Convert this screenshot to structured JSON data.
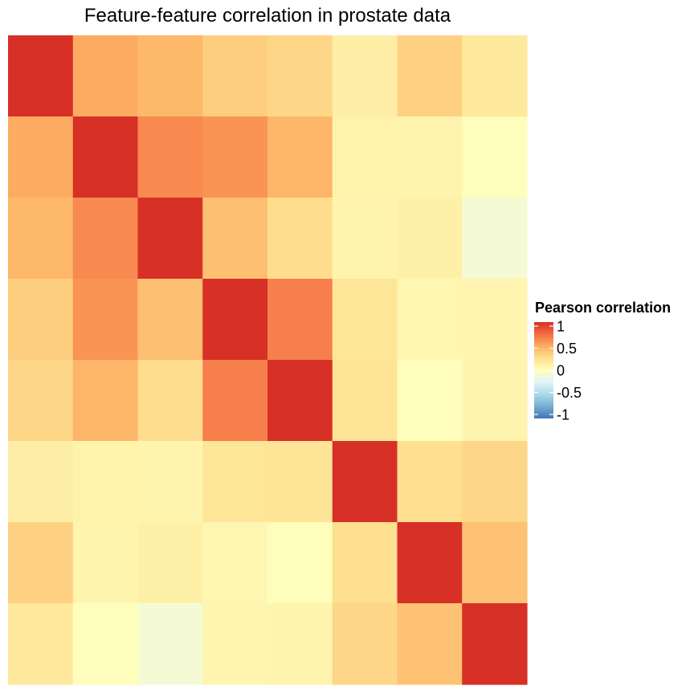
{
  "chart_data": {
    "type": "heatmap",
    "title": "Feature-feature correlation in prostate data",
    "xlabel": "",
    "ylabel": "",
    "legend": {
      "title": "Pearson correlation",
      "position": "right",
      "ticks": [
        1,
        0.5,
        0,
        -0.5,
        -1
      ],
      "tick_labels": [
        "1",
        "0.5",
        "0",
        "-0.5",
        "-1"
      ],
      "range": [
        -1,
        1
      ]
    },
    "color_scale": {
      "low": "#4575b4",
      "mid": "#ffffbf",
      "high": "#d73027",
      "palette": [
        "#4575b4",
        "#74add1",
        "#abd9e9",
        "#e0f3f8",
        "#ffffbf",
        "#fee090",
        "#fdae61",
        "#f46d43",
        "#d73027"
      ]
    },
    "matrix": [
      [
        1.0,
        0.51,
        0.45,
        0.34,
        0.3,
        0.14,
        0.33,
        0.18
      ],
      [
        0.51,
        1.0,
        0.64,
        0.6,
        0.46,
        0.1,
        0.09,
        0.02
      ],
      [
        0.45,
        0.64,
        1.0,
        0.41,
        0.26,
        0.09,
        0.12,
        -0.09
      ],
      [
        0.34,
        0.6,
        0.41,
        1.0,
        0.68,
        0.2,
        0.07,
        0.08
      ],
      [
        0.3,
        0.46,
        0.26,
        0.68,
        1.0,
        0.22,
        0.02,
        0.09
      ],
      [
        0.14,
        0.1,
        0.09,
        0.2,
        0.22,
        1.0,
        0.25,
        0.3
      ],
      [
        0.33,
        0.09,
        0.12,
        0.07,
        0.02,
        0.25,
        1.0,
        0.4
      ],
      [
        0.18,
        0.02,
        -0.09,
        0.08,
        0.09,
        0.3,
        0.4,
        1.0
      ]
    ]
  }
}
